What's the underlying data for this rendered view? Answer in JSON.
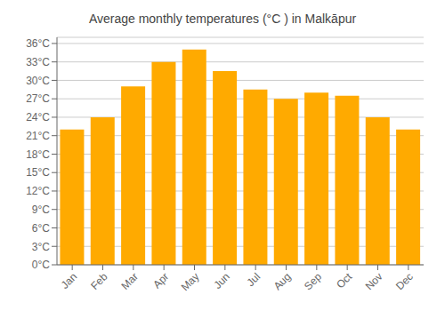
{
  "chart_data": {
    "type": "bar",
    "title": "Average monthly temperatures (°C ) in Malkāpur",
    "categories": [
      "Jan",
      "Feb",
      "Mar",
      "Apr",
      "May",
      "Jun",
      "Jul",
      "Aug",
      "Sep",
      "Oct",
      "Nov",
      "Dec"
    ],
    "values": [
      22,
      24,
      29,
      33,
      35,
      31.5,
      28.5,
      27,
      28,
      27.5,
      24,
      22
    ],
    "color": "#FFAA00",
    "ylim": [
      0,
      37
    ],
    "yticks": [
      {
        "value": 0,
        "label": "0°C"
      },
      {
        "value": 3,
        "label": "3°C"
      },
      {
        "value": 6,
        "label": "6°C"
      },
      {
        "value": 9,
        "label": "9°C"
      },
      {
        "value": 12,
        "label": "12°C"
      },
      {
        "value": 15,
        "label": "15°C"
      },
      {
        "value": 18,
        "label": "18°C"
      },
      {
        "value": 21,
        "label": "21°C"
      },
      {
        "value": 24,
        "label": "24°C"
      },
      {
        "value": 27,
        "label": "27°C"
      },
      {
        "value": 30,
        "label": "30°C"
      },
      {
        "value": 33,
        "label": "33°C"
      },
      {
        "value": 36,
        "label": "36°C"
      }
    ],
    "grid": true
  }
}
